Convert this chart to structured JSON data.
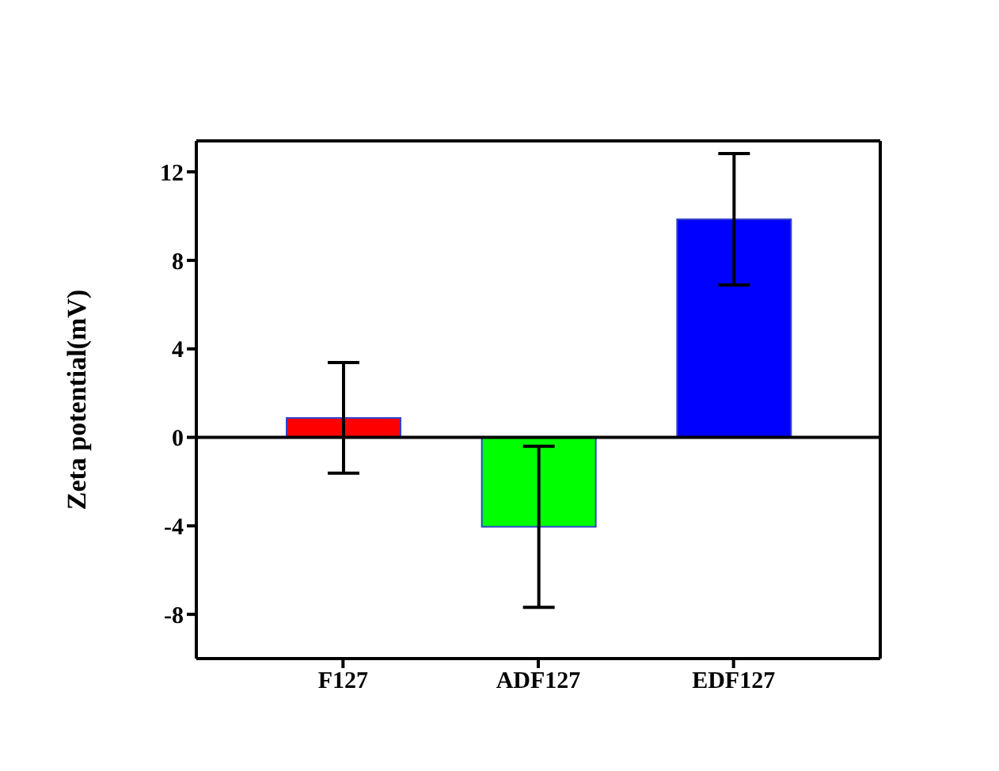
{
  "chart_data": {
    "type": "bar",
    "ylabel": "Zeta potential(mV)",
    "categories": [
      "F127",
      "ADF127",
      "EDF127"
    ],
    "values": [
      0.88,
      -4.04,
      9.86
    ],
    "colors": [
      "#ff0000",
      "#00ff00",
      "#0000ff"
    ],
    "errors": [
      2.5,
      3.64,
      2.97
    ],
    "ylim": [
      -10,
      13.4
    ],
    "yticks": [
      -8,
      -4,
      0,
      4,
      8,
      12
    ],
    "ref_lines": [
      {
        "axis": "y",
        "value": 0,
        "color": "#000000"
      }
    ],
    "grid": false
  }
}
